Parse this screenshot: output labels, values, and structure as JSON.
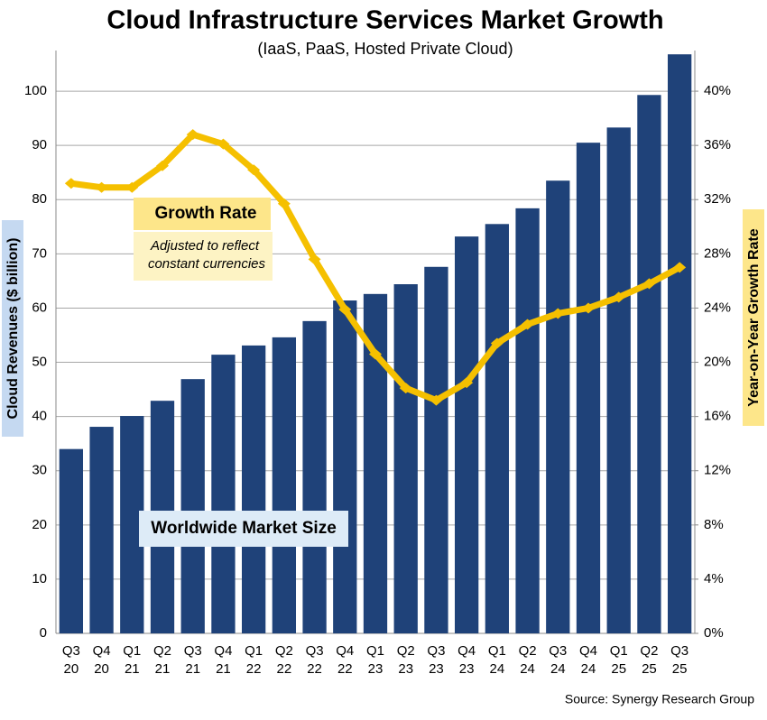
{
  "chart_data": {
    "type": "bar_line",
    "title": "Cloud Infrastructure Services Market Growth",
    "subtitle": "(IaaS, PaaS, Hosted Private Cloud)",
    "y_label": "Cloud Revenues ($ billion)",
    "y2_label": "Year-on-Year Growth Rate",
    "source": "Source: Synergy Research Group",
    "annotations": {
      "growth": "Growth Rate",
      "adjusted": [
        "Adjusted to reflect",
        "constant currencies"
      ],
      "market": "Worldwide Market Size"
    },
    "categories": [
      [
        "Q3",
        "20"
      ],
      [
        "Q4",
        "20"
      ],
      [
        "Q1",
        "21"
      ],
      [
        "Q2",
        "21"
      ],
      [
        "Q3",
        "21"
      ],
      [
        "Q4",
        "21"
      ],
      [
        "Q1",
        "22"
      ],
      [
        "Q2",
        "22"
      ],
      [
        "Q3",
        "22"
      ],
      [
        "Q4",
        "22"
      ],
      [
        "Q1",
        "23"
      ],
      [
        "Q2",
        "23"
      ],
      [
        "Q3",
        "23"
      ],
      [
        "Q4",
        "23"
      ],
      [
        "Q1",
        "24"
      ],
      [
        "Q2",
        "24"
      ],
      [
        "Q3",
        "24"
      ],
      [
        "Q4",
        "24"
      ],
      [
        "Q1",
        "25"
      ],
      [
        "Q2",
        "25"
      ],
      [
        "Q3",
        "25"
      ]
    ],
    "series": [
      {
        "name": "Worldwide Market Size",
        "type": "bar",
        "color": "#1f4279",
        "values": [
          34,
          38.1,
          40.1,
          42.9,
          46.9,
          51.4,
          53.1,
          54.6,
          57.6,
          61.4,
          62.6,
          64.4,
          67.6,
          73.2,
          75.5,
          78.4,
          83.5,
          90.5,
          93.3,
          99.3,
          106.8
        ]
      },
      {
        "name": "Growth Rate",
        "type": "line",
        "axis": "y2",
        "color": "#f5c000",
        "values": [
          33.2,
          32.9,
          32.9,
          34.5,
          36.8,
          36.1,
          34.2,
          31.7,
          27.6,
          23.9,
          20.6,
          18.1,
          17.2,
          18.5,
          21.4,
          22.8,
          23.6,
          24.0,
          24.8,
          25.8,
          27.0
        ]
      }
    ],
    "ylim": [
      0,
      107.5
    ],
    "yticks": [
      0,
      10,
      20,
      30,
      40,
      50,
      60,
      70,
      80,
      90,
      100
    ],
    "y2lim": [
      0,
      43
    ],
    "y2ticks": [
      {
        "value": 0,
        "label": "0%"
      },
      {
        "value": 4,
        "label": "4%"
      },
      {
        "value": 8,
        "label": "8%"
      },
      {
        "value": 12,
        "label": "12%"
      },
      {
        "value": 16,
        "label": "16%"
      },
      {
        "value": 20,
        "label": "20%"
      },
      {
        "value": 24,
        "label": "24%"
      },
      {
        "value": 28,
        "label": "28%"
      },
      {
        "value": 32,
        "label": "32%"
      },
      {
        "value": 36,
        "label": "36%"
      },
      {
        "value": 40,
        "label": "40%"
      }
    ],
    "grid": true
  }
}
